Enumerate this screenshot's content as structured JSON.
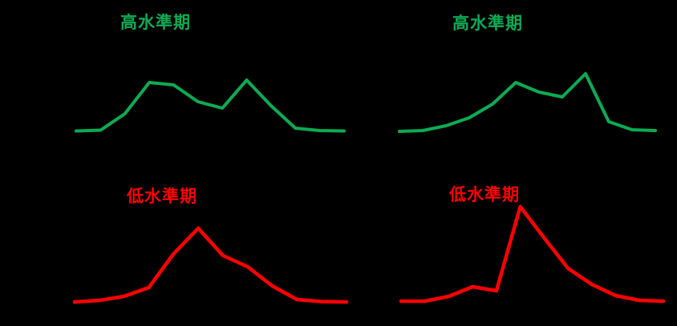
{
  "page": {
    "background_color": "#000000"
  },
  "chart_data": [
    {
      "id": "top-left",
      "type": "line",
      "title": "高水準期",
      "title_color": "#0CAB54",
      "line_color": "#0CAB54",
      "axes_visible": false,
      "grid": false,
      "legend": null,
      "n_points": 12,
      "values": [
        0.5,
        1.5,
        22,
        61,
        58,
        37,
        29,
        64,
        32,
        4,
        1,
        0.5
      ],
      "ylim": [
        0,
        130
      ]
    },
    {
      "id": "top-right",
      "type": "line",
      "title": "高水準期",
      "title_color": "#0CAB54",
      "line_color": "#0CAB54",
      "axes_visible": false,
      "grid": false,
      "legend": null,
      "n_points": 12,
      "values": [
        0,
        1,
        7,
        17,
        34,
        61,
        49,
        43,
        72,
        12,
        2,
        1
      ],
      "ylim": [
        0,
        130
      ]
    },
    {
      "id": "bottom-left",
      "type": "line",
      "title": "低水準期",
      "title_color": "#FF0000",
      "line_color": "#FF0000",
      "axes_visible": false,
      "grid": false,
      "legend": null,
      "n_points": 12,
      "values": [
        0.5,
        2.5,
        7.5,
        18.5,
        60.5,
        92.5,
        58.5,
        44.5,
        20.5,
        3.5,
        1,
        0.5
      ],
      "ylim": [
        0,
        130
      ]
    },
    {
      "id": "bottom-right",
      "type": "line",
      "title": "低水準期",
      "title_color": "#FF0000",
      "line_color": "#FF0000",
      "axes_visible": false,
      "grid": false,
      "legend": null,
      "n_points": 12,
      "values": [
        0.5,
        0.5,
        6.5,
        18.5,
        13.5,
        118.5,
        79.5,
        41.5,
        21.5,
        7.5,
        1.5,
        0.5
      ],
      "ylim": [
        0,
        130
      ]
    }
  ]
}
